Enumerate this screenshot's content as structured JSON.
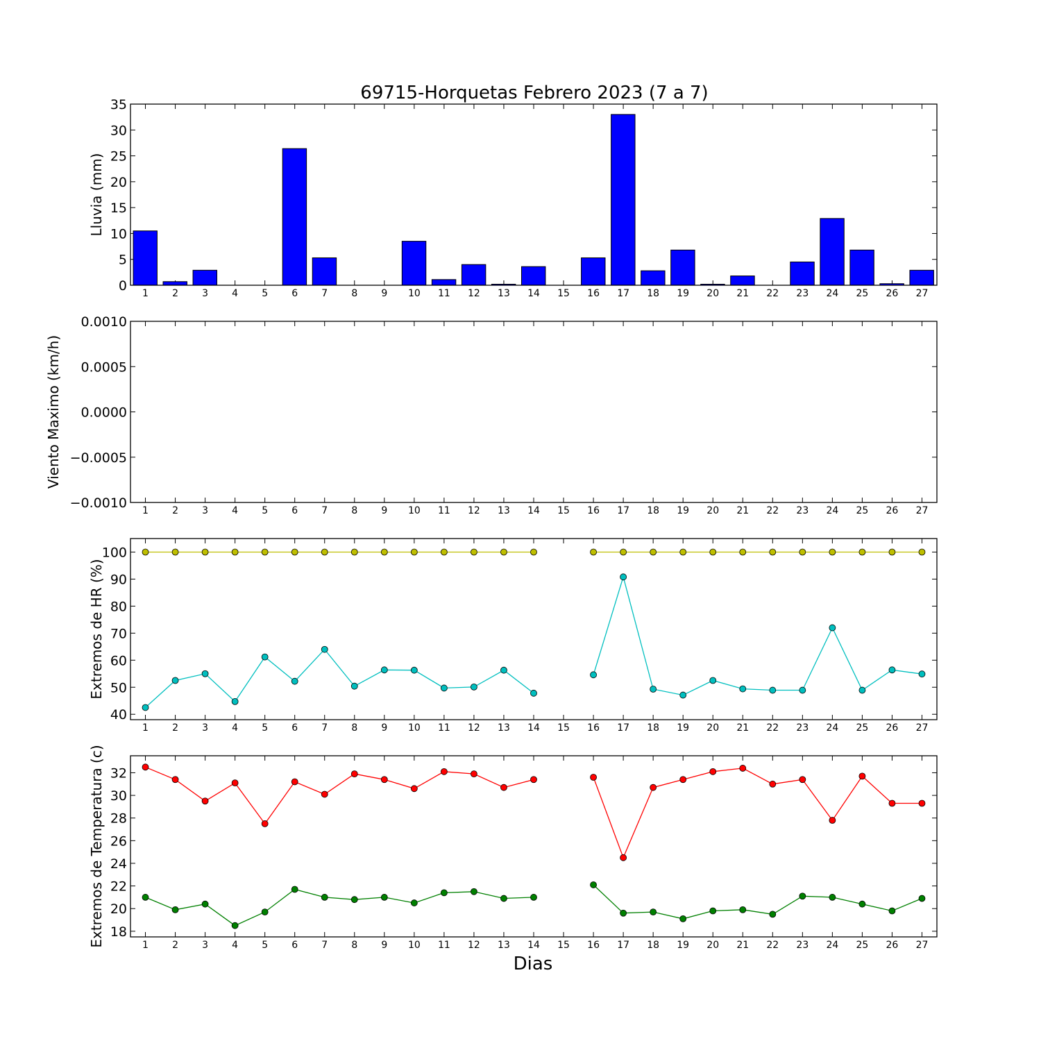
{
  "chart_data": {
    "type": "bar+line",
    "title": "69715-Horquetas Febrero 2023  (7 a 7)",
    "xlabel": "Dias",
    "x": [
      1,
      2,
      3,
      4,
      5,
      6,
      7,
      8,
      9,
      10,
      11,
      12,
      13,
      14,
      15,
      16,
      17,
      18,
      19,
      20,
      21,
      22,
      23,
      24,
      25,
      26,
      27
    ],
    "x_tick_labels": [
      "1",
      "2",
      "3",
      "4",
      "5",
      "6",
      "7",
      "8",
      "9",
      "10",
      "11",
      "12",
      "13",
      "14",
      "15",
      "16",
      "17",
      "18",
      "19",
      "20",
      "21",
      "22",
      "23",
      "24",
      "25",
      "26",
      "27"
    ],
    "panels": [
      {
        "type": "bar",
        "ylabel": "Lluvia (mm)",
        "ylim": [
          0,
          35
        ],
        "yticks": [
          "0",
          "5",
          "10",
          "15",
          "20",
          "25",
          "30",
          "35"
        ],
        "series": [
          {
            "color": "#0000ff",
            "values": [
              10.5,
              0.7,
              2.9,
              0,
              0,
              26.4,
              5.3,
              0,
              0,
              8.5,
              1.1,
              4.0,
              0.2,
              3.6,
              0,
              5.3,
              33.0,
              2.8,
              6.8,
              0.2,
              1.8,
              0,
              4.5,
              12.9,
              6.8,
              0.3,
              2.9
            ]
          }
        ]
      },
      {
        "type": "line",
        "ylabel": "Viento Maximo (km/h)",
        "ylim": [
          -0.001,
          0.001
        ],
        "yticks": [
          "−0.0010",
          "−0.0005",
          "0.0000",
          "0.0005",
          "0.0010"
        ],
        "series": []
      },
      {
        "type": "line",
        "ylabel": "Extremos de HR (%)",
        "ylim": [
          38,
          105
        ],
        "yticks": [
          "40",
          "50",
          "60",
          "70",
          "80",
          "90",
          "100"
        ],
        "series": [
          {
            "color": "#bfbf00",
            "values": [
              100,
              100,
              100,
              100,
              100,
              100,
              100,
              100,
              100,
              100,
              100,
              100,
              100,
              100,
              null,
              100,
              100,
              100,
              100,
              100,
              100,
              100,
              100,
              100,
              100,
              100,
              100
            ]
          },
          {
            "color": "#00bfbf",
            "values": [
              42.5,
              52.5,
              55,
              44.7,
              61.2,
              52.2,
              64,
              50.4,
              56.4,
              56.3,
              49.7,
              50.1,
              56.3,
              47.8,
              null,
              54.6,
              90.8,
              49.3,
              47.1,
              52.5,
              49.4,
              48.9,
              48.9,
              72,
              48.9,
              56.4,
              54.9
            ]
          }
        ]
      },
      {
        "type": "line",
        "ylabel": "Extremos de Temperatura (c)",
        "ylim": [
          17.5,
          33.5
        ],
        "yticks": [
          "18",
          "20",
          "22",
          "24",
          "26",
          "28",
          "30",
          "32"
        ],
        "series": [
          {
            "color": "#ff0000",
            "values": [
              32.5,
              31.4,
              29.5,
              31.1,
              27.5,
              31.2,
              30.1,
              31.9,
              31.4,
              30.6,
              32.1,
              31.9,
              30.7,
              31.4,
              null,
              31.6,
              24.5,
              30.7,
              31.4,
              32.1,
              32.4,
              31.0,
              31.4,
              27.8,
              31.7,
              29.3,
              29.3
            ]
          },
          {
            "color": "#008000",
            "values": [
              21.0,
              19.9,
              20.4,
              18.5,
              19.7,
              21.7,
              21.0,
              20.8,
              21.0,
              20.5,
              21.4,
              21.5,
              20.9,
              21.0,
              null,
              22.1,
              19.6,
              19.7,
              19.1,
              19.8,
              19.9,
              19.5,
              21.1,
              21.0,
              20.4,
              19.8,
              20.9
            ]
          }
        ]
      }
    ]
  }
}
